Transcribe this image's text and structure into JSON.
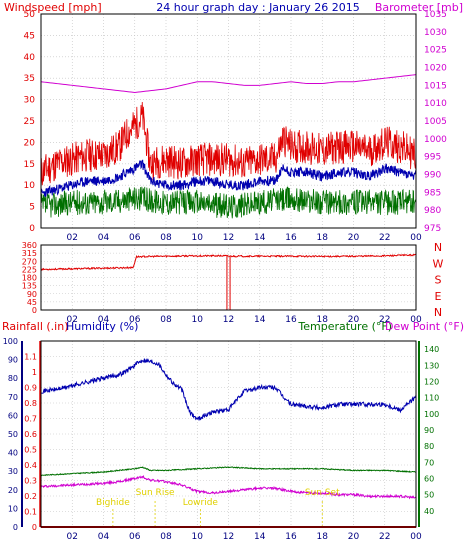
{
  "colors": {
    "red": "#e00000",
    "blue": "#0000b0",
    "green": "#007000",
    "magenta": "#d000d0",
    "navy": "#000080",
    "yellow": "#e0d000",
    "grid": "#c0c0c0",
    "frame": "#000000",
    "background": "#ffffff"
  },
  "header": {
    "left": "Windspeed [mph]",
    "center": "24 hour graph day : January 26 2015",
    "right": "Barometer [mb]"
  },
  "x_ticks": [
    "02",
    "04",
    "06",
    "08",
    "10",
    "12",
    "14",
    "16",
    "18",
    "20",
    "22",
    "00"
  ],
  "chart_data": [
    {
      "type": "line",
      "name": "wind",
      "x_range": [
        0,
        24
      ],
      "y_left": {
        "range": [
          0,
          50
        ],
        "ticks": [
          0,
          5,
          10,
          15,
          20,
          25,
          30,
          35,
          40,
          45,
          50
        ]
      },
      "y_right": {
        "range": [
          975,
          1035
        ],
        "ticks": [
          975,
          980,
          985,
          990,
          995,
          1000,
          1005,
          1010,
          1015,
          1020,
          1025,
          1030,
          1035
        ]
      },
      "series": [
        {
          "key": "gust",
          "color": "#e00000",
          "x": [
            0,
            1,
            2,
            3,
            4,
            5,
            5.5,
            6,
            6.5,
            7,
            8,
            9,
            10,
            11,
            12,
            13,
            14,
            15,
            15.5,
            16,
            17,
            18,
            19,
            20,
            21,
            22,
            23,
            24
          ],
          "values": [
            13,
            15,
            16,
            17,
            17,
            19,
            22,
            24,
            26,
            15,
            16,
            15,
            16,
            16,
            16,
            15,
            16,
            16,
            21,
            19,
            19,
            18,
            19,
            19,
            18,
            20,
            19,
            17
          ],
          "amplitude": 4,
          "seed": 11
        },
        {
          "key": "avg",
          "color": "#0000b0",
          "x": [
            0,
            1,
            2,
            3,
            4,
            5,
            6,
            6.5,
            7,
            8,
            9,
            10,
            11,
            12,
            13,
            14,
            15,
            15.5,
            16,
            17,
            18,
            19,
            20,
            21,
            22,
            23,
            24
          ],
          "values": [
            8,
            9,
            10,
            11,
            11,
            12,
            14,
            15,
            11,
            10,
            10,
            11,
            11,
            10,
            10,
            11,
            11,
            14,
            13,
            13,
            12,
            13,
            13,
            12,
            14,
            13,
            12
          ],
          "amplitude": 1.2,
          "seed": 23
        },
        {
          "key": "speed",
          "color": "#007000",
          "x": [
            0,
            2,
            4,
            6,
            8,
            10,
            12,
            14,
            16,
            18,
            20,
            22,
            24
          ],
          "values": [
            5,
            6,
            6,
            7,
            6,
            6,
            5,
            6,
            7,
            6,
            6,
            6,
            6
          ],
          "amplitude": 3,
          "seed": 37
        },
        {
          "key": "barometer",
          "color": "#d000d0",
          "axis": "right",
          "x": [
            0,
            1,
            2,
            3,
            4,
            5,
            6,
            7,
            8,
            9,
            10,
            11,
            12,
            13,
            14,
            15,
            16,
            17,
            18,
            19,
            20,
            21,
            22,
            23,
            24
          ],
          "values": [
            1016,
            1015.5,
            1015,
            1014.5,
            1014,
            1013.5,
            1013,
            1013.5,
            1014,
            1015,
            1016,
            1016,
            1015.5,
            1015,
            1015,
            1015.5,
            1016,
            1015.5,
            1015.5,
            1016,
            1016,
            1016.5,
            1017,
            1017.5,
            1018
          ],
          "amplitude": 0,
          "seed": 0
        }
      ]
    },
    {
      "type": "line",
      "name": "direction",
      "x_range": [
        0,
        24
      ],
      "y_left": {
        "range": [
          0,
          360
        ],
        "ticks": [
          0,
          45,
          90,
          135,
          180,
          225,
          270,
          315,
          360
        ]
      },
      "right_labels": [
        "N",
        "W",
        "S",
        "E",
        "N"
      ],
      "series": [
        {
          "key": "direction",
          "color": "#e00000",
          "x": [
            0,
            2,
            4,
            5.9,
            6.1,
            8,
            10,
            11.8,
            12.1,
            14,
            16,
            18,
            20,
            22,
            24
          ],
          "values": [
            225,
            228,
            232,
            235,
            295,
            298,
            300,
            300,
            298,
            298,
            298,
            297,
            298,
            300,
            305
          ],
          "amplitude": 4,
          "seed": 53,
          "drops": [
            {
              "x": 11.9,
              "to": 0
            },
            {
              "x": 12.1,
              "to": 0
            }
          ]
        }
      ]
    },
    {
      "type": "line",
      "name": "climate",
      "x_range": [
        0,
        24
      ],
      "header_left_a": "Rainfall (.in)",
      "header_left_b": "Humidity (%)",
      "header_right_a": "Temperature (°F)",
      "header_right_b": "Dew Point (°F)",
      "y_rain": {
        "range": [
          0,
          1.2
        ],
        "ticks": [
          "0",
          "0.1",
          "0.2",
          "0.3",
          "0.4",
          "0.5",
          "0.6",
          "0.7",
          "0.8",
          "0.9",
          "1",
          "1.1"
        ]
      },
      "y_humidity": {
        "range": [
          0,
          100
        ],
        "ticks": [
          0,
          10,
          20,
          30,
          40,
          50,
          60,
          70,
          80,
          90,
          100
        ]
      },
      "y_temp": {
        "range": [
          30,
          145
        ],
        "ticks": [
          40,
          50,
          60,
          70,
          80,
          90,
          100,
          110,
          120,
          130,
          140
        ]
      },
      "series": [
        {
          "key": "humidity",
          "color": "#0000b0",
          "axis": "humidity",
          "x": [
            0,
            1,
            2,
            3,
            4,
            5,
            5.5,
            6,
            6.5,
            7,
            7.5,
            8,
            8.5,
            9,
            9.5,
            10,
            10.5,
            11,
            12,
            13,
            14,
            15,
            15.5,
            16,
            17,
            18,
            19,
            20,
            21,
            22,
            23,
            24
          ],
          "values": [
            73,
            74,
            76,
            78,
            80,
            82,
            84,
            87,
            90,
            89,
            88,
            82,
            77,
            74,
            62,
            58,
            60,
            62,
            63,
            73,
            75,
            75,
            70,
            66,
            65,
            64,
            66,
            66,
            66,
            66,
            63,
            70
          ],
          "amplitude": 1.2,
          "seed": 71
        },
        {
          "key": "temperature",
          "color": "#007000",
          "axis": "temp",
          "x": [
            0,
            2,
            4,
            5,
            6,
            6.5,
            7,
            8,
            10,
            12,
            14,
            16,
            18,
            20,
            22,
            24
          ],
          "values": [
            62,
            63,
            64,
            65,
            66,
            67,
            65,
            65,
            66,
            67,
            66,
            66,
            66,
            65,
            65,
            64
          ],
          "amplitude": 0.3,
          "seed": 83
        },
        {
          "key": "dewpoint",
          "color": "#d000d0",
          "axis": "temp",
          "x": [
            0,
            2,
            4,
            5,
            6,
            6.5,
            7,
            8,
            9,
            10,
            11,
            12,
            13,
            14,
            15,
            16,
            17,
            18,
            19,
            20,
            21,
            22,
            23,
            24
          ],
          "values": [
            55,
            56,
            57,
            58,
            60,
            61,
            59,
            58,
            56,
            52,
            51,
            52,
            53,
            54,
            54,
            52,
            51,
            51,
            50,
            50,
            49,
            49,
            49,
            48
          ],
          "amplitude": 0.7,
          "seed": 97
        },
        {
          "key": "rainfall",
          "color": "#e00000",
          "axis": "rain",
          "x": [
            0,
            24
          ],
          "values": [
            0,
            0
          ],
          "amplitude": 0,
          "seed": 0
        }
      ],
      "events": [
        {
          "label": "Bighide",
          "x": 4.6
        },
        {
          "label": "Sun Rise",
          "x": 7.3
        },
        {
          "label": "Lowride",
          "x": 10.2
        },
        {
          "label": "Sun Set",
          "x": 18.0
        }
      ]
    }
  ]
}
